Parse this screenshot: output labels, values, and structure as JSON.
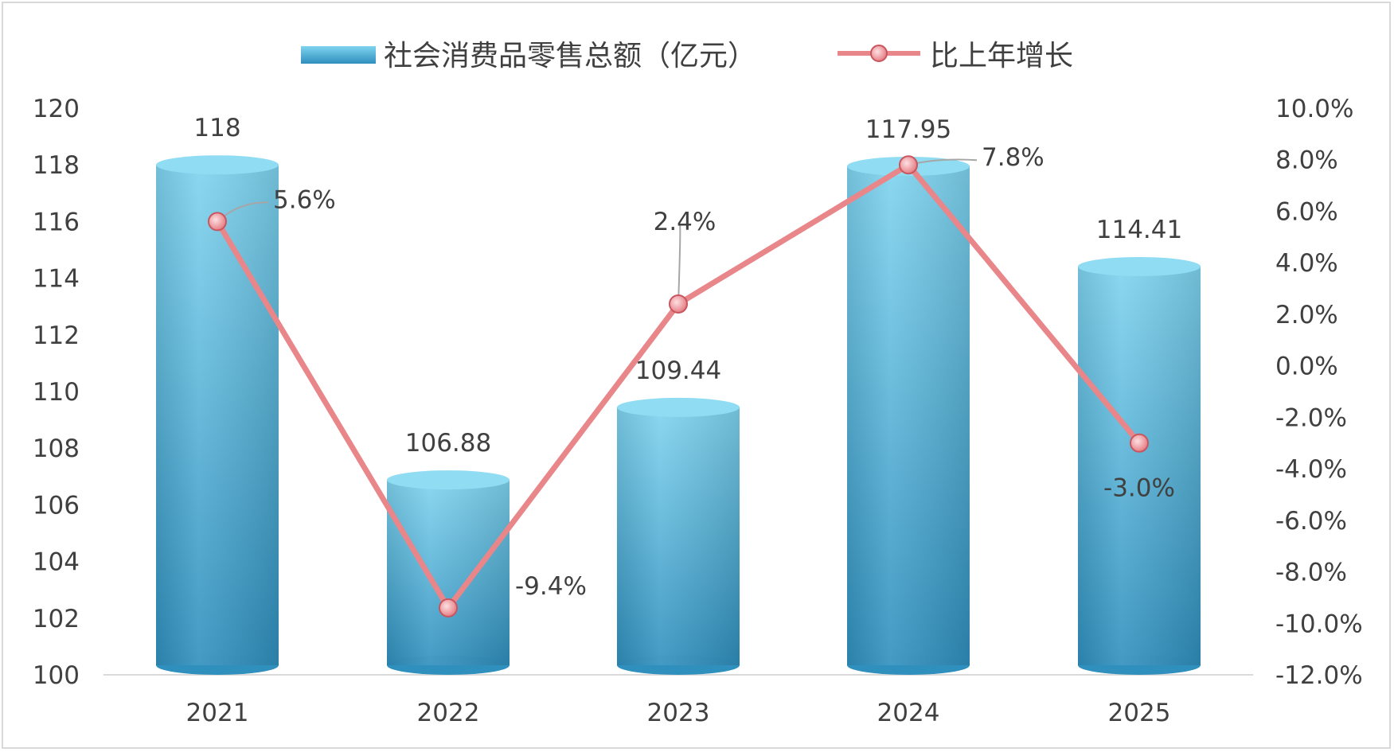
{
  "chart_data": {
    "type": "bar",
    "categories": [
      "2021",
      "2022",
      "2023",
      "2024",
      "2025"
    ],
    "series": [
      {
        "name": "社会消费品零售总额（亿元）",
        "type": "bar",
        "axis": "left",
        "values": [
          118,
          106.88,
          109.44,
          117.95,
          114.41
        ],
        "labels": [
          "118",
          "106.88",
          "109.44",
          "117.95",
          "114.41"
        ],
        "color": "#4fb3d9"
      },
      {
        "name": "比上年增长",
        "type": "line",
        "axis": "right",
        "values": [
          5.6,
          -9.4,
          2.4,
          7.8,
          -3.0
        ],
        "labels": [
          "5.6%",
          "-9.4%",
          "2.4%",
          "7.8%",
          "-3.0%"
        ],
        "color": "#e8868a"
      }
    ],
    "y_left": {
      "ylim": [
        100,
        120
      ],
      "ticks": [
        "100",
        "102",
        "104",
        "106",
        "108",
        "110",
        "112",
        "114",
        "116",
        "118",
        "120"
      ]
    },
    "y_right": {
      "ylim": [
        -12,
        10
      ],
      "ticks": [
        "-12.0%",
        "-10.0%",
        "-8.0%",
        "-6.0%",
        "-4.0%",
        "-2.0%",
        "0.0%",
        "2.0%",
        "4.0%",
        "6.0%",
        "8.0%",
        "10.0%"
      ]
    },
    "legend_position": "top",
    "grid": false
  }
}
